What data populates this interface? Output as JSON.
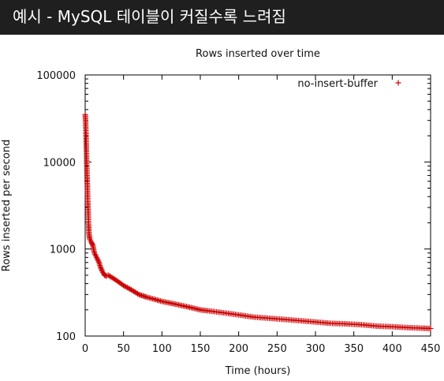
{
  "header": {
    "title": "예시 - MySQL 테이블이 커질수록 느려짐",
    "background": "#1f1f1f"
  },
  "chart_data": {
    "type": "scatter",
    "title": "Rows inserted over time",
    "xlabel": "Time (hours)",
    "ylabel": "Rows inserted per second",
    "xlim": [
      0,
      450
    ],
    "ylim": [
      100,
      100000
    ],
    "yscale": "log",
    "grid": false,
    "legend_position": "top-right",
    "xticks": [
      "0",
      "50",
      "100",
      "150",
      "200",
      "250",
      "300",
      "350",
      "400",
      "450"
    ],
    "yticks": [
      "100",
      "1000",
      "10000",
      "100000"
    ],
    "series": [
      {
        "name": "no-insert-buffer",
        "color": "#cc0000",
        "marker": "plus",
        "x": [
          0,
          0.5,
          1,
          1.5,
          2,
          2.5,
          3,
          3.5,
          4,
          4.5,
          5,
          6,
          7,
          8,
          10,
          12,
          15,
          18,
          20,
          22,
          25,
          28,
          30,
          35,
          40,
          45,
          50,
          55,
          60,
          65,
          70,
          75,
          80,
          90,
          100,
          110,
          120,
          130,
          140,
          150,
          160,
          180,
          200,
          220,
          240,
          260,
          280,
          300,
          320,
          340,
          360,
          380,
          400,
          420,
          440,
          450
        ],
        "y": [
          35000,
          30000,
          22000,
          15000,
          10000,
          7000,
          5000,
          3500,
          2500,
          1900,
          1500,
          1300,
          1250,
          1200,
          1100,
          900,
          800,
          700,
          620,
          560,
          500,
          490,
          500,
          470,
          440,
          410,
          380,
          360,
          340,
          320,
          300,
          290,
          280,
          265,
          250,
          240,
          230,
          220,
          210,
          200,
          195,
          185,
          175,
          165,
          160,
          155,
          150,
          145,
          140,
          138,
          135,
          130,
          128,
          125,
          123,
          122
        ]
      }
    ]
  }
}
